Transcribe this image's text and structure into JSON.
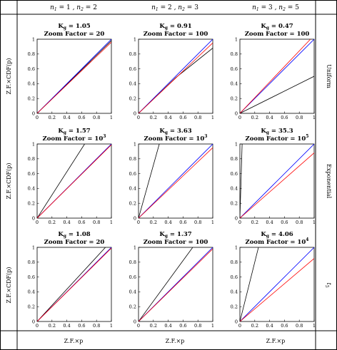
{
  "columns": [
    {
      "n1": "1",
      "n2": "2"
    },
    {
      "n1": "2",
      "n2": "3"
    },
    {
      "n1": "3",
      "n2": "5"
    }
  ],
  "rows": [
    "Uniform",
    "Exponential",
    "t5"
  ],
  "ylabel": "Z.F.×CDF(p)",
  "xlabel": "Z.F.×p",
  "kg_prefix": "K",
  "kg_sub": "g",
  "zoom_label": "Zoom Factor = ",
  "colors": {
    "black": "#000000",
    "blue": "#0000ff",
    "red": "#ff0000"
  },
  "chart_data": [
    {
      "type": "line",
      "kg": "1.05",
      "zoom": "20",
      "xlim": [
        0,
        1
      ],
      "ylim": [
        0,
        1
      ],
      "xticks": [
        "0",
        "0.2",
        "0.4",
        "0.6",
        "0.8",
        "1"
      ],
      "yticks": [
        "0",
        "0.2",
        "0.4",
        "0.6",
        "0.8",
        "1"
      ],
      "series": [
        {
          "color": "black",
          "x": [
            0,
            1
          ],
          "y": [
            0,
            0.98
          ]
        },
        {
          "color": "blue",
          "x": [
            0,
            1
          ],
          "y": [
            0,
            1
          ]
        },
        {
          "color": "red",
          "x": [
            0,
            1
          ],
          "y": [
            0,
            0.96
          ]
        }
      ]
    },
    {
      "type": "line",
      "kg": "0.91",
      "zoom": "100",
      "xlim": [
        0,
        1
      ],
      "ylim": [
        0,
        1
      ],
      "xticks": [
        "0",
        "0.2",
        "0.4",
        "0.6",
        "0.8",
        "1"
      ],
      "yticks": [
        "0",
        "0.2",
        "0.4",
        "0.6",
        "0.8",
        "1"
      ],
      "series": [
        {
          "color": "black",
          "x": [
            0,
            0.5,
            1
          ],
          "y": [
            0,
            0.48,
            0.88
          ]
        },
        {
          "color": "blue",
          "x": [
            0,
            1
          ],
          "y": [
            0,
            1
          ]
        },
        {
          "color": "red",
          "x": [
            0,
            1
          ],
          "y": [
            0,
            0.95
          ]
        }
      ]
    },
    {
      "type": "line",
      "kg": "0.47",
      "zoom": "100",
      "xlim": [
        0,
        1
      ],
      "ylim": [
        0,
        1
      ],
      "xticks": [
        "0",
        "0.2",
        "0.4",
        "0.6",
        "0.8",
        "1"
      ],
      "yticks": [
        "0",
        "0.2",
        "0.4",
        "0.6",
        "0.8",
        "1"
      ],
      "series": [
        {
          "color": "black",
          "x": [
            0,
            1
          ],
          "y": [
            0,
            0.5
          ]
        },
        {
          "color": "blue",
          "x": [
            0,
            1
          ],
          "y": [
            0,
            1
          ]
        },
        {
          "color": "red",
          "x": [
            0,
            0.95
          ],
          "y": [
            0,
            1
          ]
        }
      ]
    },
    {
      "type": "line",
      "kg": "1.57",
      "zoom": "10",
      "zoom_exp": "3",
      "xlim": [
        0,
        1
      ],
      "ylim": [
        0,
        1
      ],
      "xticks": [
        "0",
        "0.2",
        "0.4",
        "0.6",
        "0.8",
        "1"
      ],
      "yticks": [
        "0",
        "0.2",
        "0.4",
        "0.6",
        "0.8",
        "1"
      ],
      "series": [
        {
          "color": "black",
          "x": [
            0,
            0.64
          ],
          "y": [
            0,
            1
          ]
        },
        {
          "color": "blue",
          "x": [
            0,
            1
          ],
          "y": [
            0,
            1
          ]
        },
        {
          "color": "red",
          "x": [
            0,
            1
          ],
          "y": [
            0,
            0.99
          ]
        }
      ]
    },
    {
      "type": "line",
      "kg": "3.63",
      "zoom": "10",
      "zoom_exp": "3",
      "xlim": [
        0,
        1
      ],
      "ylim": [
        0,
        1
      ],
      "xticks": [
        "0",
        "0.2",
        "0.4",
        "0.6",
        "0.8",
        "1"
      ],
      "yticks": [
        "0",
        "0.2",
        "0.4",
        "0.6",
        "0.8",
        "1"
      ],
      "series": [
        {
          "color": "black",
          "x": [
            0,
            0.28
          ],
          "y": [
            0,
            1
          ]
        },
        {
          "color": "blue",
          "x": [
            0,
            1
          ],
          "y": [
            0,
            1
          ]
        },
        {
          "color": "red",
          "x": [
            0,
            1
          ],
          "y": [
            0,
            0.95
          ]
        }
      ]
    },
    {
      "type": "line",
      "kg": "35.3",
      "zoom": "10",
      "zoom_exp": "5",
      "xlim": [
        0,
        1
      ],
      "ylim": [
        0,
        1
      ],
      "xticks": [
        "0",
        "0.2",
        "0.4",
        "0.6",
        "0.8",
        "1"
      ],
      "yticks": [
        "0",
        "0.2",
        "0.4",
        "0.6",
        "0.8",
        "1"
      ],
      "series": [
        {
          "color": "black",
          "x": [
            0,
            0.03
          ],
          "y": [
            0,
            1
          ]
        },
        {
          "color": "blue",
          "x": [
            0,
            1
          ],
          "y": [
            0,
            1
          ]
        },
        {
          "color": "red",
          "x": [
            0,
            1
          ],
          "y": [
            0,
            0.88
          ]
        }
      ]
    },
    {
      "type": "line",
      "kg": "1.08",
      "zoom": "20",
      "xlim": [
        0,
        1
      ],
      "ylim": [
        0,
        1
      ],
      "xticks": [
        "0",
        "0.2",
        "0.4",
        "0.6",
        "0.8",
        "1"
      ],
      "yticks": [
        "0",
        "0.2",
        "0.4",
        "0.6",
        "0.8",
        "1"
      ],
      "series": [
        {
          "color": "black",
          "x": [
            0,
            0.92
          ],
          "y": [
            0,
            1
          ]
        },
        {
          "color": "blue",
          "x": [
            0,
            1
          ],
          "y": [
            0,
            1
          ]
        },
        {
          "color": "red",
          "x": [
            0,
            1
          ],
          "y": [
            0,
            0.99
          ]
        }
      ]
    },
    {
      "type": "line",
      "kg": "1.37",
      "zoom": "100",
      "xlim": [
        0,
        1
      ],
      "ylim": [
        0,
        1
      ],
      "xticks": [
        "0",
        "0.2",
        "0.4",
        "0.6",
        "0.8",
        "1"
      ],
      "yticks": [
        "0",
        "0.2",
        "0.4",
        "0.6",
        "0.8",
        "1"
      ],
      "series": [
        {
          "color": "black",
          "x": [
            0,
            0.73
          ],
          "y": [
            0,
            1
          ]
        },
        {
          "color": "blue",
          "x": [
            0,
            1
          ],
          "y": [
            0,
            1
          ]
        },
        {
          "color": "red",
          "x": [
            0,
            1
          ],
          "y": [
            0,
            0.98
          ]
        }
      ]
    },
    {
      "type": "line",
      "kg": "4.06",
      "zoom": "10",
      "zoom_exp": "4",
      "xlim": [
        0,
        1
      ],
      "ylim": [
        0,
        1
      ],
      "xticks": [
        "0",
        "0.2",
        "0.4",
        "0.6",
        "0.8",
        "1"
      ],
      "yticks": [
        "0",
        "0.2",
        "0.4",
        "0.6",
        "0.8",
        "1"
      ],
      "series": [
        {
          "color": "black",
          "x": [
            0,
            0.25
          ],
          "y": [
            0,
            1
          ]
        },
        {
          "color": "blue",
          "x": [
            0,
            1
          ],
          "y": [
            0,
            1
          ]
        },
        {
          "color": "red",
          "x": [
            0,
            1
          ],
          "y": [
            0,
            0.85
          ]
        }
      ]
    }
  ]
}
